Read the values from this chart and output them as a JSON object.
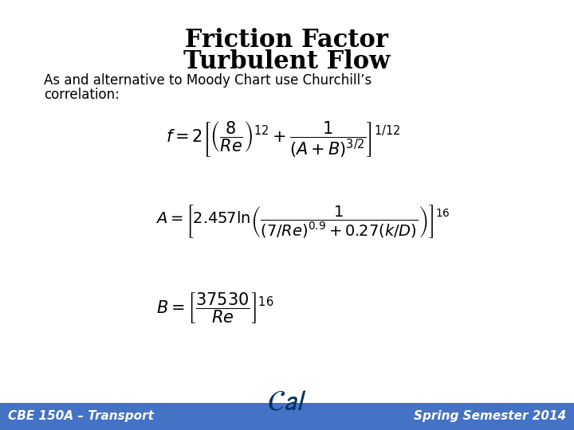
{
  "title_line1": "Friction Factor",
  "title_line2": "Turbulent Flow",
  "subtitle_line1": "As and alternative to Moody Chart use Churchill’s",
  "subtitle_line2": "correlation:",
  "footer_left": "CBE 150A – Transport",
  "footer_right": "Spring Semester 2014",
  "footer_bg": "#4472C4",
  "bg_color": "#FFFFFF",
  "title_color": "#000000",
  "footer_text_color": "#FFFFFF",
  "cal_color": "#003262"
}
